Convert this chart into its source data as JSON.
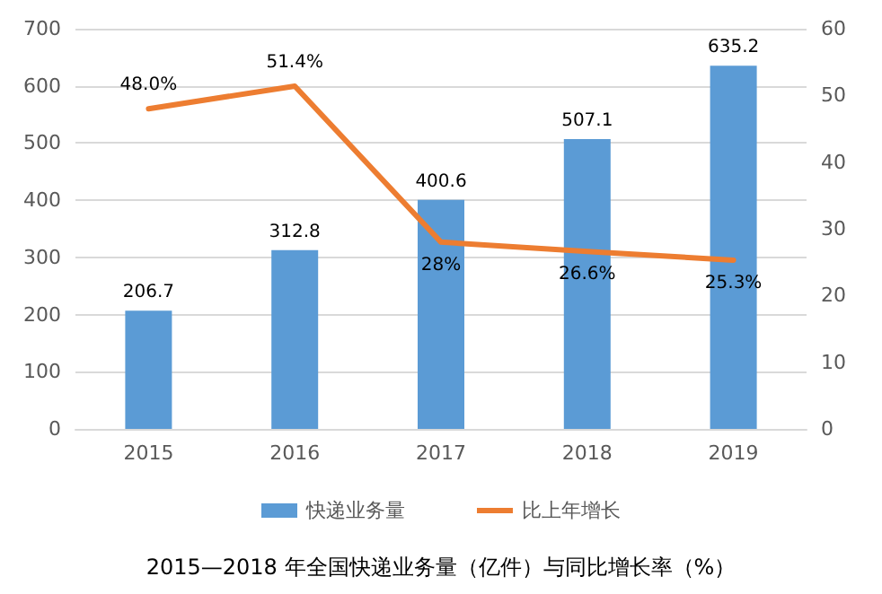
{
  "chart_data": {
    "type": "bar",
    "title": "2015—2018 年全国快递业务量（亿件）与同比增长率（%）",
    "categories": [
      "2015",
      "2016",
      "2017",
      "2018",
      "2019"
    ],
    "series": [
      {
        "name": "快递业务量",
        "color": "#5b9bd5",
        "values": [
          206.7,
          312.8,
          400.6,
          507.1,
          635.2
        ],
        "value_labels": [
          "206.7",
          "312.8",
          "400.6",
          "507.1",
          "635.2"
        ]
      },
      {
        "name": "比上年增长",
        "type": "line",
        "axis": "y2",
        "color": "#ed7d31",
        "values": [
          48.0,
          51.4,
          28,
          26.6,
          25.3
        ],
        "value_labels": [
          "48.0%",
          "51.4%",
          "28%",
          "26.6%",
          "25.3%"
        ]
      }
    ],
    "ylim": [
      0,
      700
    ],
    "yticks": [
      0,
      100,
      200,
      300,
      400,
      500,
      600,
      700
    ],
    "y2lim": [
      0,
      60
    ],
    "y2ticks": [
      0,
      10,
      20,
      30,
      40,
      50,
      60
    ],
    "grid": "y",
    "legend": "bottom",
    "marker": "none",
    "line_style": "solid"
  }
}
